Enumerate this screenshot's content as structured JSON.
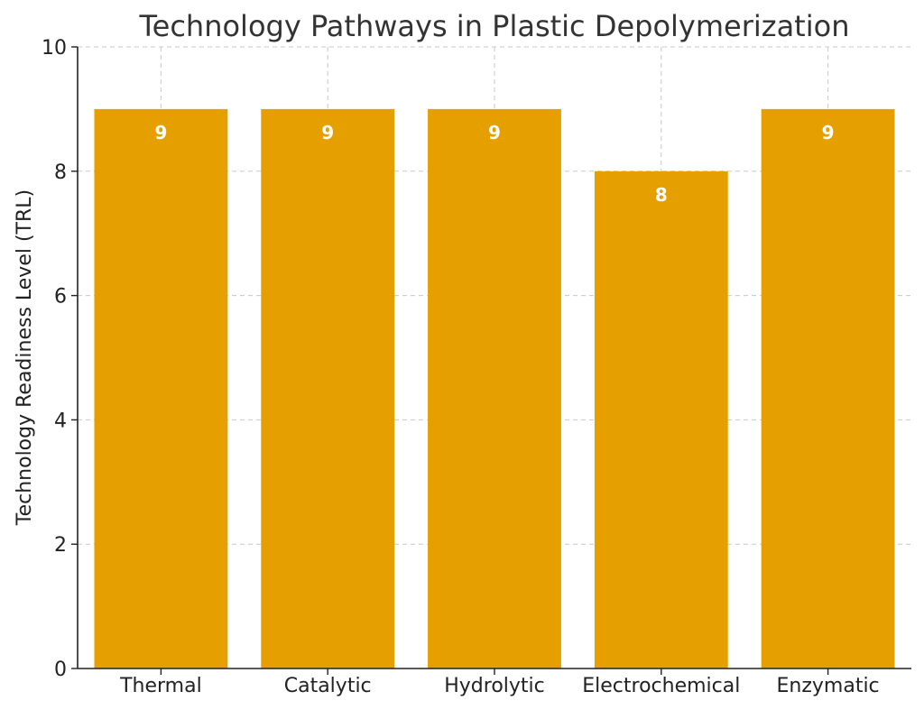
{
  "chart_data": {
    "type": "bar",
    "title": "Technology Pathways in Plastic Depolymerization",
    "xlabel": "",
    "ylabel": "Technology Readiness Level (TRL)",
    "categories": [
      "Thermal",
      "Catalytic",
      "Hydrolytic",
      "Electrochemical",
      "Enzymatic"
    ],
    "values": [
      9,
      9,
      9,
      8,
      9
    ],
    "data_labels": [
      "9",
      "9",
      "9",
      "8",
      "9"
    ],
    "ylim": [
      0,
      10
    ],
    "yticks": [
      0,
      2,
      4,
      6,
      8,
      10
    ],
    "ytick_labels": [
      "0",
      "2",
      "4",
      "6",
      "8",
      "10"
    ],
    "grid": true,
    "bar_color": "#E5A000",
    "label_color": "#ffffff"
  }
}
